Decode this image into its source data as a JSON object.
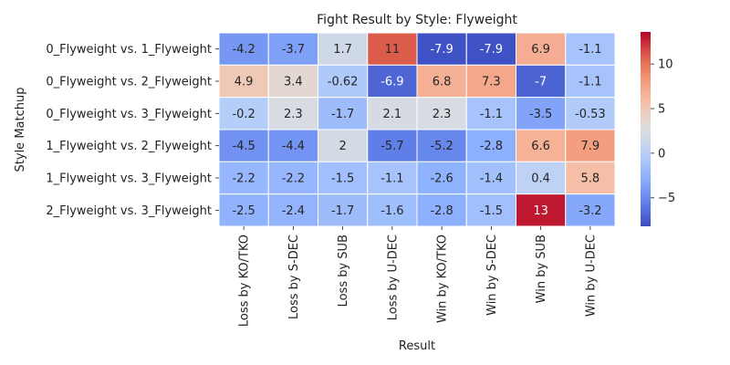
{
  "chart_data": {
    "type": "heatmap",
    "title": "Fight Result by Style: Flyweight",
    "xlabel": "Result",
    "ylabel": "Style Matchup",
    "columns": [
      "Loss by KO/TKO",
      "Loss by S-DEC",
      "Loss by SUB",
      "Loss by U-DEC",
      "Win by KO/TKO",
      "Win by S-DEC",
      "Win by SUB",
      "Win by U-DEC"
    ],
    "rows": [
      "0_Flyweight vs. 1_Flyweight",
      "0_Flyweight vs. 2_Flyweight",
      "0_Flyweight vs. 3_Flyweight",
      "1_Flyweight vs. 2_Flyweight",
      "1_Flyweight vs. 3_Flyweight",
      "2_Flyweight vs. 3_Flyweight"
    ],
    "values": [
      [
        -4.2,
        -3.7,
        1.7,
        11,
        -7.9,
        -7.9,
        6.9,
        -1.1
      ],
      [
        4.9,
        3.4,
        -0.62,
        -6.9,
        6.8,
        7.3,
        -7,
        -1.1
      ],
      [
        -0.2,
        2.3,
        -1.7,
        2.1,
        2.3,
        -1.1,
        -3.5,
        -0.53
      ],
      [
        -4.5,
        -4.4,
        2,
        -5.7,
        -5.2,
        -2.8,
        6.6,
        7.9
      ],
      [
        -2.2,
        -2.2,
        -1.5,
        -1.1,
        -2.6,
        -1.4,
        0.4,
        5.8
      ],
      [
        -2.5,
        -2.4,
        -1.7,
        -1.6,
        -2.8,
        -1.5,
        13,
        -3.2
      ]
    ],
    "cell_labels": [
      [
        "-4.2",
        "-3.7",
        "1.7",
        "11",
        "-7.9",
        "-7.9",
        "6.9",
        "-1.1"
      ],
      [
        "4.9",
        "3.4",
        "-0.62",
        "-6.9",
        "6.8",
        "7.3",
        "-7",
        "-1.1"
      ],
      [
        "-0.2",
        "2.3",
        "-1.7",
        "2.1",
        "2.3",
        "-1.1",
        "-3.5",
        "-0.53"
      ],
      [
        "-4.5",
        "-4.4",
        "2",
        "-5.7",
        "-5.2",
        "-2.8",
        "6.6",
        "7.9"
      ],
      [
        "-2.2",
        "-2.2",
        "-1.5",
        "-1.1",
        "-2.6",
        "-1.4",
        "0.4",
        "5.8"
      ],
      [
        "-2.5",
        "-2.4",
        "-1.7",
        "-1.6",
        "-2.8",
        "-1.5",
        "13",
        "-3.2"
      ]
    ],
    "colormap": "coolwarm",
    "color_range": [
      -8.2,
      13.6
    ],
    "colorbar": {
      "ticks": [
        -5,
        0,
        5,
        10
      ],
      "tick_labels": [
        "−5",
        "0",
        "5",
        "10"
      ]
    },
    "legend": "right"
  }
}
